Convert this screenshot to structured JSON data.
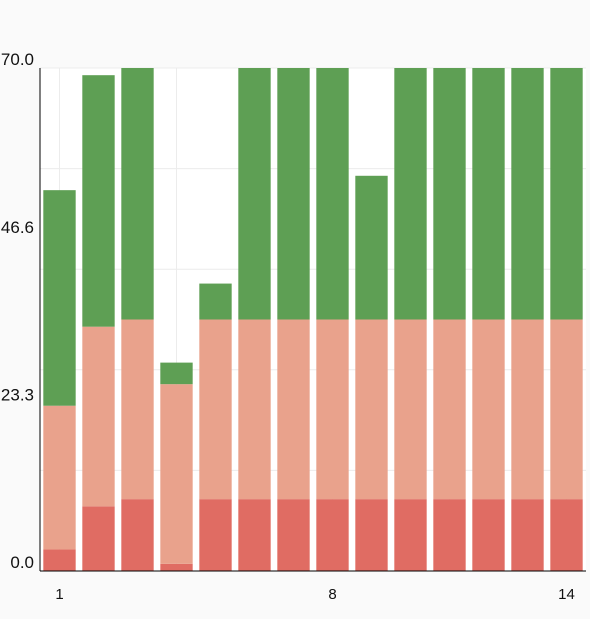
{
  "chart_data": {
    "type": "bar",
    "stacked": true,
    "categories": [
      "1",
      "2",
      "3",
      "4",
      "5",
      "6",
      "7",
      "8",
      "9",
      "10",
      "11",
      "12",
      "13",
      "14"
    ],
    "x_tick_labels": [
      "1",
      "8",
      "14"
    ],
    "y_tick_labels": [
      "0.0",
      "23.3",
      "46.6",
      "70.0"
    ],
    "ylim": [
      0,
      70
    ],
    "grid": true,
    "legend": "none",
    "series": [
      {
        "color": "#e06c63",
        "values": [
          3,
          9,
          10,
          1,
          10,
          10,
          10,
          10,
          10,
          10,
          10,
          10,
          10,
          10
        ]
      },
      {
        "color": "#e9a28c",
        "values": [
          20,
          25,
          25,
          25,
          25,
          25,
          25,
          25,
          25,
          25,
          25,
          25,
          25,
          25
        ]
      },
      {
        "color": "#5e9f54",
        "values": [
          30,
          35,
          35,
          3,
          5,
          35,
          35,
          35,
          20,
          35,
          35,
          35,
          35,
          35
        ]
      }
    ]
  }
}
